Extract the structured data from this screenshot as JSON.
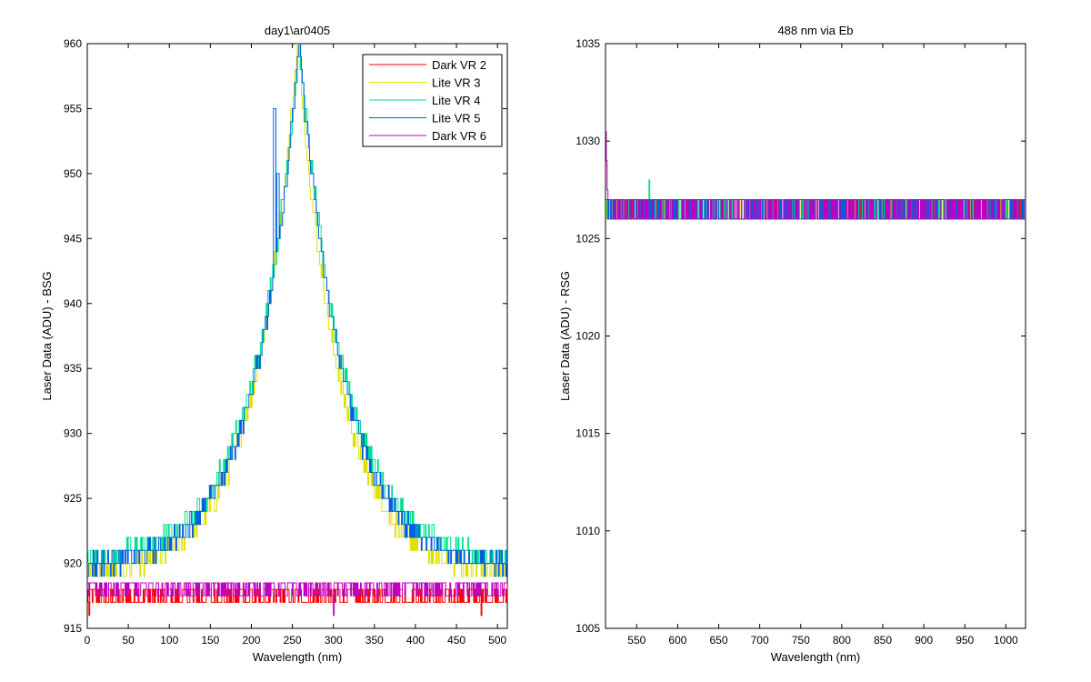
{
  "chart_data": [
    {
      "type": "line",
      "title": "day1\\ar0405",
      "xlabel": "Wavelength (nm)",
      "ylabel": "Laser Data (ADU) - BSG",
      "xlim": [
        0,
        512
      ],
      "ylim": [
        915,
        960
      ],
      "xticks": [
        0,
        50,
        100,
        150,
        200,
        250,
        300,
        350,
        400,
        450,
        500
      ],
      "yticks": [
        915,
        920,
        925,
        930,
        935,
        940,
        945,
        950,
        955,
        960
      ],
      "legend_position": "top-right",
      "series": [
        {
          "name": "Dark VR 2",
          "color": "#ff0000",
          "kind": "noise",
          "base": 917,
          "amp": 1,
          "spikes": [
            [
              2,
              916
            ],
            [
              480,
              916
            ]
          ]
        },
        {
          "name": "Lite VR 3",
          "color": "#e0e000",
          "kind": "peak",
          "base": 919,
          "peak_x": 256,
          "peak_y": 960,
          "width": 52
        },
        {
          "name": "Lite VR 4",
          "color": "#00e090",
          "kind": "peak",
          "base": 920,
          "peak_x": 258,
          "peak_y": 960,
          "width": 55
        },
        {
          "name": "Lite VR 5",
          "color": "#0060e0",
          "kind": "peak",
          "base": 919.5,
          "peak_x": 258,
          "peak_y": 960,
          "width": 54,
          "extra": [
            [
              228,
              955
            ],
            [
              232,
              950
            ]
          ]
        },
        {
          "name": "Dark VR 6",
          "color": "#c000c0",
          "kind": "noise",
          "base": 917.5,
          "amp": 1,
          "spikes": [
            [
              300,
              916
            ]
          ]
        }
      ]
    },
    {
      "type": "line",
      "title": "488 nm via Eb",
      "xlabel": "Wavelength (nm)",
      "ylabel": "Laser Data (ADU) - RSG",
      "xlim": [
        512,
        1024
      ],
      "ylim": [
        1005,
        1035
      ],
      "xticks": [
        550,
        600,
        650,
        700,
        750,
        800,
        850,
        900,
        950,
        1000
      ],
      "yticks": [
        1005,
        1010,
        1015,
        1020,
        1025,
        1030,
        1035
      ],
      "series": [
        {
          "name": "Dark VR 2",
          "color": "#ff0000",
          "kind": "noise",
          "base": 1026,
          "amp": 1
        },
        {
          "name": "Lite VR 3",
          "color": "#e0e000",
          "kind": "noise",
          "base": 1026,
          "amp": 1
        },
        {
          "name": "Lite VR 4",
          "color": "#00e090",
          "kind": "noise",
          "base": 1026,
          "amp": 1,
          "spikes": [
            [
              565,
              1028
            ]
          ]
        },
        {
          "name": "Lite VR 5",
          "color": "#0060e0",
          "kind": "noise",
          "base": 1026,
          "amp": 1
        },
        {
          "name": "Dark VR 6",
          "color": "#c000c0",
          "kind": "noise",
          "base": 1026,
          "amp": 1,
          "start_spike": 1030.5
        }
      ]
    }
  ]
}
